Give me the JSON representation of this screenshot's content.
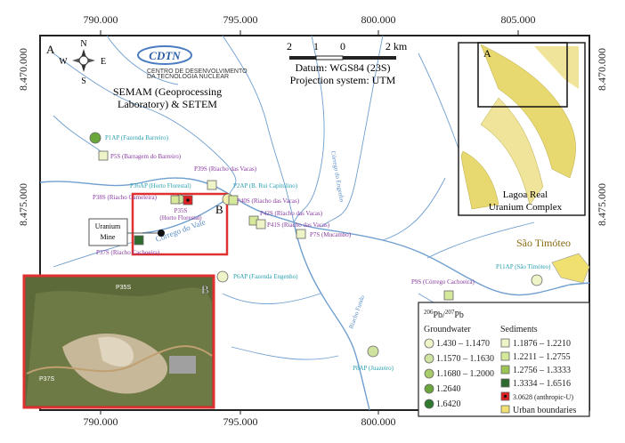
{
  "grid_labels": {
    "top": [
      "790.000",
      "795.000",
      "800.000",
      "805.000"
    ],
    "bottom": [
      "790.000",
      "795.000",
      "800.000"
    ],
    "left": [
      "8.470.000",
      "8.475.000"
    ],
    "right": [
      "8.470.000",
      "8.475.000"
    ]
  },
  "panel_label": "A",
  "compass": {
    "n": "N",
    "s": "S",
    "w": "W",
    "e": "E"
  },
  "logo": {
    "name": "CDTN",
    "subtitle": [
      "CENTRO DE DESENVOLVIMENTO",
      "DA TECNOLOGIA NUCLEAR"
    ]
  },
  "scale": [
    "2",
    "1",
    "0",
    "2 km"
  ],
  "datum": "Datum: WGS84 (23S)",
  "projection": "Projection system: UTM",
  "credit": [
    "SEMAM (Geoprocessing",
    "Laboratory) & SETEM"
  ],
  "samples": [
    {
      "id": "P1AP",
      "site": "(Fazenda Barreiro)"
    },
    {
      "id": "P5S",
      "site": "(Barragem do Barreiro)"
    },
    {
      "id": "P39S",
      "site": "(Riacho das Vacas)"
    },
    {
      "id": "P36AP",
      "site": "(Horto Florestal)"
    },
    {
      "id": "P2AP",
      "site": "(B. Rui Capitolino)"
    },
    {
      "id": "P38S",
      "site": "(Riacho Gameleira)"
    },
    {
      "id": "P35S",
      "site": "(Horto Florestal)"
    },
    {
      "id": "P40S",
      "site": "(Riacho das Vacas)"
    },
    {
      "id": "P42S",
      "site": "(Riacho das Vacas)"
    },
    {
      "id": "P41S",
      "site": "(Riacho das Vacas)"
    },
    {
      "id": "P7S",
      "site": "(Mucambo)"
    },
    {
      "id": "P37S",
      "site": "(Riacho Cachoeira)"
    },
    {
      "id": "P6AP",
      "site": "(Fazenda Engenho)"
    },
    {
      "id": "P9S",
      "site": "(Córrego Cachoeira)"
    },
    {
      "id": "P11AP",
      "site": "(São Timóteo)"
    },
    {
      "id": "P8AP",
      "site": "(Juazeiro)"
    }
  ],
  "streams": [
    "Córrego do Vale",
    "Córrego do Engenho",
    "Riacho Fundo"
  ],
  "mine": [
    "Uranium",
    "Mine"
  ],
  "box_label": "B",
  "town": "São Timóteo",
  "inset": {
    "label": "A",
    "caption": [
      "Lagoa Real",
      "Uranium Complex"
    ]
  },
  "photo": {
    "label": "B",
    "points": [
      "P35S",
      "P37S"
    ]
  },
  "legend": {
    "title": {
      "sup1": "206",
      "part1": "Pb/",
      "sup2": "207",
      "part2": "Pb"
    },
    "groundwater": {
      "title": "Groundwater",
      "items": [
        "1.430 – 1.1470",
        "1.1570 – 1.1630",
        "1.1680 – 1.2000",
        "1.2640",
        "1.6420"
      ]
    },
    "sediments": {
      "title": "Sediments",
      "items": [
        "1.1876 – 1.2210",
        "1.2211 – 1.2755",
        "1.2756 – 1.3333",
        "1.3334 – 1.6516",
        "3.0628 (anthropic-U)",
        "Urban boundaries"
      ]
    }
  }
}
